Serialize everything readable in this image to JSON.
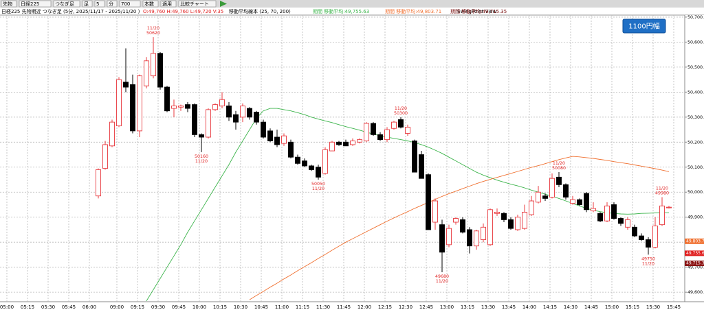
{
  "toolbar": {
    "items": [
      "先物",
      "日経225",
      "つなぎ足",
      "足",
      "5",
      "分",
      "700",
      "本数",
      "適用",
      "比較チャート"
    ]
  },
  "chart_data": {
    "type": "candlestick",
    "title": "日経225 先物期近 つなぎ足 (5分, 2025/11/17 - 2025/11/20 )",
    "ohlcv": "O:49,760 H:49,760 L:49,720 V:35",
    "indicator": "移動平均線本 (25, 70, 200)",
    "extra_legend": {
      "text": "期間 移動平均:49,715.35",
      "color": "#7a1010"
    },
    "view": "SwingPoint View",
    "badge": "1100円幅",
    "up_color": "#e8383d",
    "down_color": "#000000",
    "grid": true,
    "ylim": [
      49562,
      50708
    ],
    "yticks": [
      {
        "value": 49600,
        "label": "49,600.00"
      },
      {
        "value": 49700,
        "label": "49,700.00"
      },
      {
        "value": 49800,
        "label": "49,800.00"
      },
      {
        "value": 49900,
        "label": "49,900.00"
      },
      {
        "value": 50000,
        "label": "50,000.00"
      },
      {
        "value": 50100,
        "label": "50,100.00"
      },
      {
        "value": 50200,
        "label": "50,200.00"
      },
      {
        "value": 50300,
        "label": "50,300.00"
      },
      {
        "value": 50400,
        "label": "50,400.00"
      },
      {
        "value": 50500,
        "label": "50,500.00"
      },
      {
        "value": 50600,
        "label": "50,600.00"
      },
      {
        "value": 50700,
        "label": "50,700.00"
      }
    ],
    "categories": [
      "05:00",
      null,
      null,
      "05:15",
      null,
      null,
      "05:30",
      null,
      null,
      "05:45",
      null,
      null,
      "06:00",
      null,
      null,
      null,
      "09:00",
      null,
      null,
      "09:15",
      null,
      null,
      "09:30",
      null,
      null,
      "09:45",
      null,
      null,
      "10:00",
      null,
      null,
      "10:15",
      null,
      null,
      "10:30",
      null,
      null,
      "10:45",
      null,
      null,
      "11:00",
      null,
      null,
      "11:15",
      null,
      null,
      "11:30",
      null,
      null,
      "11:45",
      null,
      null,
      "12:00",
      null,
      null,
      "12:15",
      null,
      null,
      "12:30",
      null,
      null,
      "12:45",
      null,
      null,
      "13:00",
      null,
      null,
      "13:15",
      null,
      null,
      "13:30",
      null,
      null,
      "13:45",
      null,
      null,
      "14:00",
      null,
      null,
      "14:15",
      null,
      null,
      "14:30",
      null,
      null,
      "14:45",
      null,
      null,
      "15:00",
      null,
      null,
      "15:15",
      null,
      null,
      "15:30",
      null,
      null,
      "15:45"
    ],
    "open": [
      null,
      null,
      null,
      null,
      null,
      null,
      null,
      null,
      null,
      null,
      null,
      null,
      null,
      49985,
      50095,
      50185,
      50265,
      50440,
      50430,
      50245,
      50425,
      50465,
      50555,
      50420,
      50335,
      50340,
      50350,
      50350,
      50230,
      50220,
      50330,
      50345,
      50345,
      50310,
      50300,
      50335,
      50320,
      50280,
      50245,
      50220,
      50195,
      50200,
      50140,
      50125,
      50105,
      50100,
      50075,
      50165,
      50200,
      50200,
      50190,
      50200,
      50205,
      50275,
      50230,
      50210,
      50255,
      50290,
      50235,
      50205,
      50150,
      50070,
      49880,
      49870,
      49790,
      49880,
      49890,
      49850,
      49785,
      49810,
      49790,
      49915,
      49915,
      49890,
      49850,
      49855,
      49910,
      49960,
      49985,
      49980,
      50060,
      50030,
      49955,
      49970,
      49995,
      49925,
      49915,
      49885,
      49950,
      49895,
      49860,
      49860,
      49825,
      49810,
      49780,
      49870,
      49940,
      null
    ],
    "high": [
      null,
      null,
      null,
      null,
      null,
      null,
      null,
      null,
      null,
      null,
      null,
      null,
      null,
      50095,
      50205,
      50290,
      50460,
      50575,
      50470,
      50470,
      50540,
      50620,
      50560,
      50425,
      50370,
      50350,
      50360,
      50355,
      50235,
      50335,
      50355,
      50400,
      50360,
      50325,
      50355,
      50340,
      50325,
      50290,
      50255,
      50250,
      50235,
      50210,
      50150,
      50135,
      50110,
      50110,
      50180,
      50205,
      50205,
      50210,
      50215,
      50215,
      50280,
      50280,
      50240,
      50260,
      50285,
      50300,
      50270,
      50210,
      50165,
      50075,
      49975,
      49890,
      49870,
      49900,
      49900,
      49860,
      49850,
      49875,
      49935,
      49935,
      49920,
      49900,
      49910,
      49950,
      49985,
      50025,
      49995,
      50075,
      50080,
      50035,
      49985,
      49975,
      50000,
      49960,
      49920,
      49960,
      49960,
      49900,
      49900,
      49870,
      49835,
      49820,
      49900,
      49980,
      49945,
      null
    ],
    "low": [
      null,
      null,
      null,
      null,
      null,
      null,
      null,
      null,
      null,
      null,
      null,
      null,
      null,
      49975,
      50090,
      50180,
      50260,
      50400,
      50235,
      50220,
      50415,
      50455,
      50410,
      50320,
      50300,
      50325,
      50320,
      50220,
      50160,
      50215,
      50325,
      50335,
      50285,
      50250,
      50280,
      50290,
      50270,
      50215,
      50200,
      50180,
      50185,
      50135,
      50110,
      50100,
      50085,
      50050,
      50070,
      50165,
      50185,
      50185,
      50185,
      50195,
      50200,
      50225,
      50205,
      50200,
      50250,
      50255,
      50225,
      50080,
      50055,
      49850,
      49850,
      49680,
      49780,
      49870,
      49835,
      49755,
      49770,
      49800,
      49785,
      49905,
      49880,
      49850,
      49845,
      49850,
      49905,
      49955,
      49965,
      49975,
      50020,
      49970,
      49950,
      49945,
      49920,
      49920,
      49880,
      49880,
      49890,
      49865,
      49850,
      49820,
      49805,
      49750,
      49775,
      49865,
      49935,
      null
    ],
    "close": [
      null,
      null,
      null,
      null,
      null,
      null,
      null,
      null,
      null,
      null,
      null,
      null,
      null,
      50090,
      50190,
      50280,
      50450,
      50420,
      50245,
      50465,
      50525,
      50555,
      50420,
      50325,
      50345,
      50345,
      50335,
      50230,
      50220,
      50330,
      50350,
      50370,
      50300,
      50280,
      50345,
      50300,
      50280,
      50220,
      50205,
      50190,
      50225,
      50140,
      50115,
      50105,
      50090,
      50060,
      50170,
      50200,
      50190,
      50185,
      50205,
      50210,
      50275,
      50230,
      50210,
      50250,
      50280,
      50260,
      50260,
      50080,
      50055,
      49850,
      49965,
      49760,
      49855,
      49895,
      49840,
      49785,
      49845,
      49860,
      49930,
      49920,
      49890,
      49855,
      49900,
      49920,
      49965,
      50000,
      49975,
      50055,
      50030,
      49980,
      49970,
      49950,
      49930,
      49935,
      49885,
      49945,
      49895,
      49875,
      49890,
      49825,
      49810,
      49780,
      49865,
      49945,
      49940,
      null
    ],
    "series": [
      {
        "name": "期間 移動平均:49,755.63",
        "color": "#3cb44b",
        "values": [
          null,
          null,
          null,
          null,
          null,
          null,
          null,
          null,
          null,
          null,
          null,
          null,
          null,
          null,
          null,
          null,
          null,
          null,
          null,
          null,
          49565,
          49610,
          49655,
          49700,
          49745,
          49790,
          49840,
          49885,
          49930,
          49975,
          50020,
          50065,
          50110,
          50160,
          50205,
          50250,
          50295,
          50325,
          50335,
          50335,
          50330,
          50325,
          50318,
          50310,
          50300,
          50292,
          50285,
          50278,
          50270,
          50262,
          50255,
          50248,
          50240,
          50232,
          50226,
          50220,
          50215,
          50210,
          50205,
          50198,
          50190,
          50180,
          50168,
          50155,
          50140,
          50125,
          50110,
          50095,
          50080,
          50068,
          50058,
          50048,
          50040,
          50032,
          50025,
          50017,
          50008,
          50000,
          49992,
          49984,
          49975,
          49965,
          49955,
          49945,
          49935,
          49928,
          49922,
          49918,
          49915,
          49913,
          49912,
          49913,
          49915,
          49916,
          49917,
          49918,
          49918,
          null
        ]
      },
      {
        "name": "期間 移動平均:49,803.71",
        "color": "#f07030",
        "values": [
          null,
          null,
          null,
          null,
          null,
          null,
          null,
          null,
          null,
          null,
          null,
          null,
          null,
          null,
          null,
          null,
          null,
          null,
          null,
          null,
          null,
          null,
          null,
          null,
          null,
          null,
          null,
          null,
          null,
          null,
          null,
          null,
          null,
          null,
          null,
          49570,
          49587,
          49603,
          49620,
          49636,
          49653,
          49669,
          49686,
          49702,
          49718,
          49735,
          49751,
          49768,
          49784,
          49800,
          49814,
          49828,
          49842,
          49856,
          49870,
          49884,
          49897,
          49910,
          49922,
          49935,
          49947,
          49959,
          49971,
          49983,
          49994,
          50004,
          50014,
          50024,
          50034,
          50043,
          50051,
          50059,
          50067,
          50075,
          50083,
          50091,
          50099,
          50106,
          50114,
          50122,
          50130,
          50137,
          50143,
          50141,
          50138,
          50135,
          50131,
          50127,
          50122,
          50118,
          50114,
          50109,
          50104,
          50099,
          50094,
          50088,
          50082,
          null
        ]
      }
    ],
    "annotations": [
      {
        "date": "11/20",
        "price": 50620
      },
      {
        "date": "11/20",
        "price": 50160
      },
      {
        "date": "11/20",
        "price": 50050
      },
      {
        "date": "11/20",
        "price": 50300
      },
      {
        "date": "11/20",
        "price": 49680
      },
      {
        "date": "11/20",
        "price": 50080
      },
      {
        "date": "11/20",
        "price": 49750
      },
      {
        "date": "11/20",
        "price": 49980
      }
    ],
    "price_labels": [
      {
        "value": 49803.71,
        "label": "49,803.71",
        "color": "#f07030"
      },
      {
        "value": 49755.63,
        "label": "49,755.63",
        "color": "#e02020"
      },
      {
        "value": 49715.35,
        "label": "49,715.35",
        "color": "#8b1414"
      }
    ]
  }
}
